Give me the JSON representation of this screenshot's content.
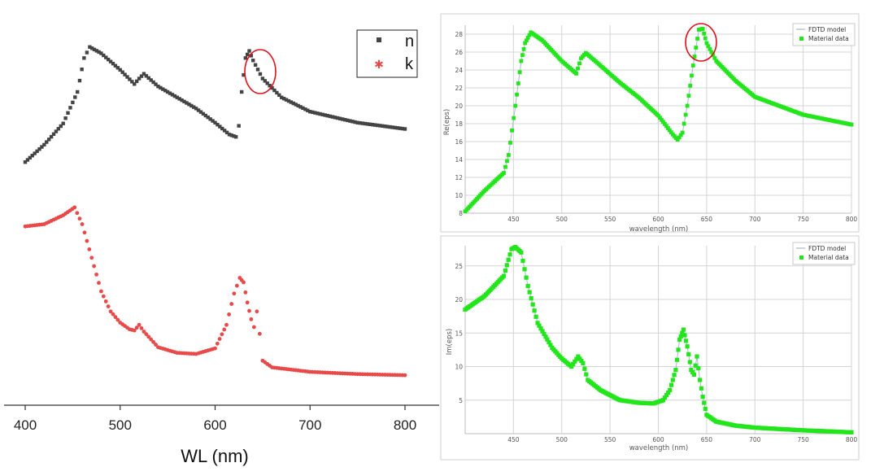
{
  "chart_data": [
    {
      "id": "left-nk",
      "type": "scatter",
      "title": "",
      "xlabel": "WL (nm)",
      "ylabel": "",
      "xticks": [
        "400",
        "500",
        "600",
        "700",
        "800"
      ],
      "xlim": [
        370,
        830
      ],
      "legend": {
        "entries": [
          "n",
          "k"
        ],
        "placement": "top-right"
      },
      "colors": {
        "n": "#444444",
        "k": "#e84a4a",
        "highlight": "#e0101a"
      },
      "series": [
        {
          "name": "n",
          "x": [
            400,
            420,
            440,
            455,
            462,
            468,
            480,
            500,
            515,
            520,
            525,
            540,
            560,
            580,
            600,
            615,
            622,
            625,
            628,
            632,
            636,
            640,
            650,
            670,
            700,
            750,
            800
          ],
          "y": [
            1.06,
            1.28,
            1.55,
            1.95,
            2.38,
            2.52,
            2.44,
            2.23,
            2.05,
            2.12,
            2.18,
            2.02,
            1.88,
            1.74,
            1.56,
            1.41,
            1.38,
            1.52,
            1.95,
            2.38,
            2.47,
            2.35,
            2.12,
            1.88,
            1.7,
            1.56,
            1.48
          ]
        },
        {
          "name": "k",
          "x": [
            400,
            420,
            440,
            452,
            460,
            470,
            480,
            490,
            500,
            510,
            515,
            520,
            525,
            540,
            560,
            580,
            600,
            612,
            620,
            626,
            630,
            634,
            638,
            641,
            644,
            647,
            650,
            660,
            680,
            700,
            750,
            800
          ],
          "y": [
            1.38,
            1.4,
            1.48,
            1.55,
            1.4,
            1.1,
            0.8,
            0.62,
            0.52,
            0.46,
            0.45,
            0.5,
            0.44,
            0.3,
            0.25,
            0.24,
            0.29,
            0.5,
            0.78,
            0.92,
            0.88,
            0.7,
            0.55,
            0.48,
            0.62,
            0.42,
            0.18,
            0.12,
            0.1,
            0.08,
            0.06,
            0.05
          ]
        }
      ]
    },
    {
      "id": "right-re-eps",
      "type": "scatter",
      "title": "",
      "xlabel": "wavelength (nm)",
      "ylabel": "Re(eps)",
      "xticks": [
        "450",
        "500",
        "550",
        "600",
        "650",
        "700",
        "750",
        "800"
      ],
      "yticks": [
        "8",
        "10",
        "12",
        "14",
        "16",
        "18",
        "20",
        "22",
        "24",
        "26",
        "28"
      ],
      "xlim": [
        400,
        800
      ],
      "ylim": [
        8,
        29
      ],
      "legend": {
        "entries": [
          "FDTD model",
          "Material data"
        ],
        "placement": "top-right"
      },
      "colors": {
        "material": "#22e61b",
        "model": "#a9b7cc",
        "highlight": "#e0101a"
      },
      "series": [
        {
          "name": "Material data",
          "x": [
            400,
            420,
            440,
            445,
            452,
            458,
            462,
            468,
            480,
            500,
            515,
            520,
            525,
            540,
            560,
            580,
            600,
            615,
            620,
            625,
            630,
            636,
            642,
            646,
            650,
            660,
            680,
            700,
            750,
            800
          ],
          "y": [
            8.2,
            10.5,
            12.5,
            14.5,
            20.0,
            25.0,
            27.0,
            28.2,
            27.3,
            25.0,
            23.6,
            25.3,
            25.9,
            24.5,
            22.6,
            20.9,
            18.9,
            16.8,
            16.2,
            17.0,
            20.0,
            24.5,
            28.5,
            28.6,
            27.0,
            25.0,
            22.8,
            21.0,
            19.0,
            17.9
          ]
        }
      ]
    },
    {
      "id": "right-im-eps",
      "type": "scatter",
      "title": "",
      "xlabel": "wavelength (nm)",
      "ylabel": "Im(eps)",
      "xticks": [
        "450",
        "500",
        "550",
        "600",
        "650",
        "700",
        "750",
        "800"
      ],
      "yticks": [
        "5",
        "10",
        "15",
        "20",
        "25"
      ],
      "xlim": [
        400,
        800
      ],
      "ylim": [
        0,
        28
      ],
      "legend": {
        "entries": [
          "FDTD model",
          "Material data"
        ],
        "placement": "top-right"
      },
      "colors": {
        "material": "#22e61b",
        "model": "#a9b7cc"
      },
      "series": [
        {
          "name": "Material data",
          "x": [
            400,
            420,
            440,
            448,
            452,
            458,
            465,
            475,
            490,
            500,
            510,
            517,
            522,
            527,
            540,
            560,
            580,
            595,
            605,
            612,
            618,
            622,
            626,
            630,
            634,
            637,
            640,
            643,
            646,
            650,
            660,
            680,
            700,
            750,
            800
          ],
          "y": [
            18.5,
            20.5,
            23.5,
            27.5,
            27.8,
            27.0,
            22.0,
            16.5,
            12.8,
            11.2,
            10.0,
            11.5,
            10.5,
            8.0,
            6.5,
            5.0,
            4.6,
            4.5,
            5.0,
            6.5,
            9.5,
            14.0,
            15.5,
            13.0,
            9.5,
            8.8,
            11.5,
            8.0,
            5.5,
            2.8,
            1.8,
            1.2,
            0.9,
            0.5,
            0.2
          ]
        }
      ]
    }
  ]
}
